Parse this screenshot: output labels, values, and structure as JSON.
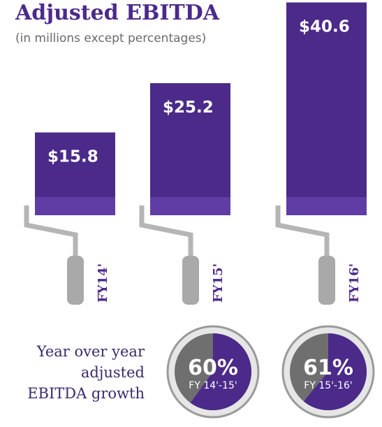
{
  "chart_data": {
    "type": "bar",
    "title": "Adjusted EBITDA",
    "subtitle": "(in millions except percentages)",
    "categories": [
      "FY14'",
      "FY15'",
      "FY16'"
    ],
    "values": [
      15.8,
      25.2,
      40.6
    ],
    "value_labels": [
      "$15.8",
      "$25.2",
      "$40.6"
    ],
    "color": "#4b2a8a",
    "growth": {
      "label": [
        "Year over year",
        "adjusted",
        "EBITDA growth"
      ],
      "categories": [
        "FY 14'-15'",
        "FY 15'-16'"
      ],
      "values": [
        60,
        61
      ],
      "value_labels": [
        "60%",
        "61%"
      ]
    }
  }
}
